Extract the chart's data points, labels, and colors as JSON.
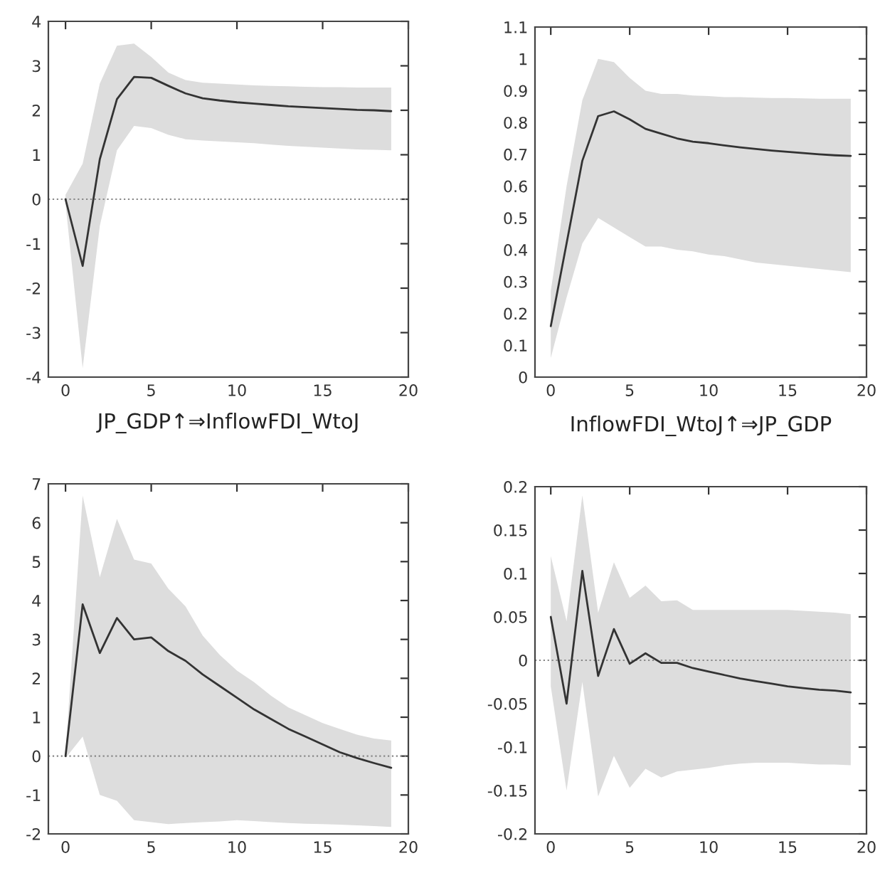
{
  "chart_data": [
    {
      "type": "line",
      "x": [
        0,
        1,
        2,
        3,
        4,
        5,
        6,
        7,
        8,
        9,
        10,
        11,
        12,
        13,
        14,
        15,
        16,
        17,
        18,
        19
      ],
      "xlim": [
        -1,
        20
      ],
      "xticks": [
        0,
        5,
        10,
        15,
        20
      ],
      "ylim": [
        -4,
        4
      ],
      "yticks": [
        -4,
        -3,
        -2,
        -1,
        0,
        1,
        2,
        3,
        4
      ],
      "grid": false,
      "ref_lines": [
        {
          "axis": "y",
          "value": 0,
          "line_style": "dotted",
          "color": "#888888"
        }
      ],
      "series": [
        {
          "color": "#333333",
          "values": [
            0,
            -1.5,
            0.9,
            2.25,
            2.75,
            2.73,
            2.55,
            2.38,
            2.27,
            2.22,
            2.18,
            2.15,
            2.12,
            2.09,
            2.07,
            2.05,
            2.03,
            2.01,
            2.0,
            1.98
          ],
          "upper": [
            0.1,
            0.8,
            2.6,
            3.45,
            3.5,
            3.2,
            2.85,
            2.68,
            2.62,
            2.6,
            2.58,
            2.56,
            2.55,
            2.54,
            2.53,
            2.52,
            2.52,
            2.51,
            2.51,
            2.51
          ],
          "lower": [
            -0.1,
            -3.8,
            -0.6,
            1.1,
            1.65,
            1.6,
            1.45,
            1.35,
            1.32,
            1.3,
            1.28,
            1.26,
            1.23,
            1.2,
            1.18,
            1.16,
            1.14,
            1.12,
            1.11,
            1.1
          ]
        }
      ]
    },
    {
      "type": "line",
      "x": [
        0,
        1,
        2,
        3,
        4,
        5,
        6,
        7,
        8,
        9,
        10,
        11,
        12,
        13,
        14,
        15,
        16,
        17,
        18,
        19
      ],
      "xlim": [
        -1,
        20
      ],
      "xticks": [
        0,
        5,
        10,
        15,
        20
      ],
      "ylim": [
        0,
        1.1
      ],
      "yticks": [
        0,
        0.1,
        0.2,
        0.3,
        0.4,
        0.5,
        0.6,
        0.7,
        0.8,
        0.9,
        1,
        1.1
      ],
      "grid": false,
      "series": [
        {
          "color": "#333333",
          "values": [
            0.16,
            0.42,
            0.68,
            0.82,
            0.835,
            0.81,
            0.78,
            0.765,
            0.75,
            0.74,
            0.735,
            0.728,
            0.722,
            0.717,
            0.712,
            0.708,
            0.704,
            0.7,
            0.697,
            0.695
          ],
          "upper": [
            0.27,
            0.6,
            0.87,
            1.0,
            0.99,
            0.94,
            0.9,
            0.89,
            0.89,
            0.885,
            0.883,
            0.88,
            0.88,
            0.878,
            0.877,
            0.877,
            0.876,
            0.875,
            0.875,
            0.875
          ],
          "lower": [
            0.06,
            0.25,
            0.42,
            0.5,
            0.47,
            0.44,
            0.41,
            0.41,
            0.4,
            0.395,
            0.385,
            0.38,
            0.37,
            0.36,
            0.355,
            0.35,
            0.345,
            0.34,
            0.335,
            0.33
          ]
        }
      ]
    },
    {
      "type": "line",
      "title": "JP_GDP↑⇒InflowFDI_WtoJ",
      "x": [
        0,
        1,
        2,
        3,
        4,
        5,
        6,
        7,
        8,
        9,
        10,
        11,
        12,
        13,
        14,
        15,
        16,
        17,
        18,
        19
      ],
      "xlim": [
        -1,
        20
      ],
      "xticks": [
        0,
        5,
        10,
        15,
        20
      ],
      "ylim": [
        -2,
        7
      ],
      "yticks": [
        -2,
        -1,
        0,
        1,
        2,
        3,
        4,
        5,
        6,
        7
      ],
      "grid": false,
      "ref_lines": [
        {
          "axis": "y",
          "value": 0,
          "line_style": "dotted",
          "color": "#888888"
        }
      ],
      "series": [
        {
          "color": "#333333",
          "values": [
            0,
            3.9,
            2.65,
            3.55,
            3.0,
            3.05,
            2.7,
            2.45,
            2.1,
            1.8,
            1.5,
            1.2,
            0.95,
            0.7,
            0.5,
            0.3,
            0.1,
            -0.05,
            -0.18,
            -0.3
          ],
          "upper": [
            0.05,
            6.7,
            4.6,
            6.1,
            5.05,
            4.95,
            4.3,
            3.85,
            3.1,
            2.6,
            2.2,
            1.9,
            1.55,
            1.25,
            1.05,
            0.85,
            0.7,
            0.55,
            0.45,
            0.4
          ],
          "lower": [
            -0.05,
            0.5,
            -1.0,
            -1.15,
            -1.65,
            -1.7,
            -1.75,
            -1.72,
            -1.7,
            -1.68,
            -1.65,
            -1.67,
            -1.7,
            -1.72,
            -1.74,
            -1.75,
            -1.76,
            -1.78,
            -1.8,
            -1.82
          ]
        }
      ]
    },
    {
      "type": "line",
      "title": "InflowFDI_WtoJ↑⇒JP_GDP",
      "x": [
        0,
        1,
        2,
        3,
        4,
        5,
        6,
        7,
        8,
        9,
        10,
        11,
        12,
        13,
        14,
        15,
        16,
        17,
        18,
        19
      ],
      "xlim": [
        -1,
        20
      ],
      "xticks": [
        0,
        5,
        10,
        15,
        20
      ],
      "ylim": [
        -0.2,
        0.2
      ],
      "yticks": [
        -0.2,
        -0.15,
        -0.1,
        -0.05,
        0,
        0.05,
        0.1,
        0.15,
        0.2
      ],
      "grid": false,
      "ref_lines": [
        {
          "axis": "y",
          "value": 0,
          "line_style": "dotted",
          "color": "#888888"
        }
      ],
      "series": [
        {
          "color": "#333333",
          "values": [
            0.05,
            -0.05,
            0.103,
            -0.018,
            0.036,
            -0.004,
            0.008,
            -0.003,
            -0.003,
            -0.009,
            -0.013,
            -0.017,
            -0.021,
            -0.024,
            -0.027,
            -0.03,
            -0.032,
            -0.034,
            -0.035,
            -0.037
          ],
          "upper": [
            0.12,
            0.045,
            0.19,
            0.055,
            0.113,
            0.072,
            0.086,
            0.068,
            0.069,
            0.058,
            0.058,
            0.058,
            0.058,
            0.058,
            0.058,
            0.058,
            0.057,
            0.056,
            0.055,
            0.053
          ],
          "lower": [
            -0.03,
            -0.15,
            -0.025,
            -0.157,
            -0.11,
            -0.147,
            -0.125,
            -0.135,
            -0.128,
            -0.126,
            -0.124,
            -0.121,
            -0.119,
            -0.118,
            -0.118,
            -0.118,
            -0.119,
            -0.12,
            -0.12,
            -0.121
          ]
        }
      ]
    }
  ]
}
